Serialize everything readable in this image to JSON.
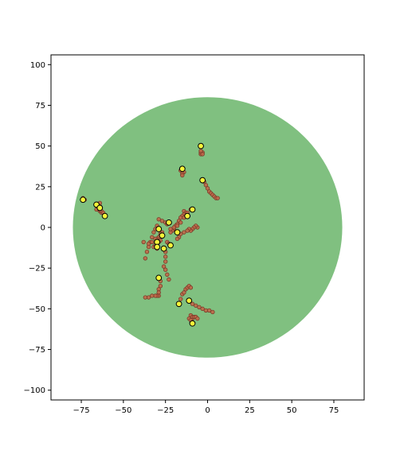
{
  "chart_data": {
    "type": "scatter",
    "title": "",
    "xlabel": "",
    "ylabel": "",
    "xlim": [
      -93,
      93
    ],
    "ylim": [
      -106,
      106
    ],
    "x_ticks": [
      -75,
      -50,
      -25,
      0,
      25,
      50,
      75
    ],
    "y_ticks": [
      100,
      75,
      50,
      25,
      0,
      -25,
      -50,
      -75,
      -100
    ],
    "x_tick_labels": [
      "−75",
      "−50",
      "−25",
      "0",
      "25",
      "50",
      "75"
    ],
    "y_tick_labels": [
      "100",
      "75",
      "50",
      "25",
      "0",
      "−25",
      "−50",
      "−75",
      "−100"
    ],
    "grid": false,
    "region": {
      "shape": "circle",
      "center": [
        0,
        0
      ],
      "radius": 80,
      "color": "#80c080"
    },
    "trail_style": {
      "fill": "#c06848",
      "stroke": "#7a3a2a"
    },
    "head_style": {
      "fill": "#f5f53a",
      "stroke": "#000000"
    },
    "series": [
      {
        "trail": [
          [
            -3,
            46
          ],
          [
            -4,
            45
          ],
          [
            -4,
            46
          ],
          [
            -3,
            45
          ],
          [
            -4,
            47
          ]
        ],
        "head": [
          -4,
          50
        ]
      },
      {
        "trail": [
          [
            -14,
            34
          ],
          [
            -15,
            33
          ],
          [
            -15,
            32
          ],
          [
            -16,
            35
          ]
        ],
        "head": [
          -15,
          36
        ]
      },
      {
        "trail": [
          [
            -2,
            28
          ],
          [
            -1,
            26
          ],
          [
            0,
            24
          ],
          [
            1,
            22
          ],
          [
            2,
            21
          ],
          [
            3,
            20
          ],
          [
            4,
            19
          ],
          [
            5,
            18
          ],
          [
            6,
            18
          ]
        ],
        "head": [
          -3,
          29
        ]
      },
      {
        "trail": [
          [
            -73,
            17
          ],
          [
            -74,
            18
          ]
        ],
        "head": [
          -74,
          17
        ]
      },
      {
        "trail": [
          [
            -64,
            15
          ],
          [
            -65,
            13
          ],
          [
            -65,
            12
          ],
          [
            -66,
            11
          ],
          [
            -64,
            10
          ],
          [
            -63,
            9
          ],
          [
            -64,
            11
          ]
        ],
        "head": [
          -66,
          14
        ]
      },
      {
        "trail": [
          [
            -63,
            10
          ],
          [
            -64,
            13
          ]
        ],
        "head": [
          -64,
          12
        ]
      },
      {
        "trail": [
          [
            -62,
            9
          ]
        ],
        "head": [
          -61,
          7
        ]
      },
      {
        "trail": [
          [
            -14,
            10
          ],
          [
            -13,
            9
          ],
          [
            -14,
            8
          ],
          [
            -15,
            7
          ],
          [
            -16,
            6
          ],
          [
            -17,
            4
          ],
          [
            -18,
            2
          ],
          [
            -19,
            1
          ],
          [
            -20,
            -1
          ],
          [
            -21,
            -2
          ],
          [
            -22,
            -3
          ]
        ],
        "head": [
          -12,
          7
        ]
      },
      {
        "trail": [
          [
            -10,
            11
          ],
          [
            -12,
            9
          ],
          [
            -14,
            6
          ],
          [
            -16,
            3
          ],
          [
            -18,
            1
          ],
          [
            -20,
            0
          ],
          [
            -22,
            -1
          ]
        ],
        "head": [
          -9,
          11
        ]
      },
      {
        "trail": [
          [
            -6,
            0
          ],
          [
            -7,
            1
          ],
          [
            -8,
            0
          ],
          [
            -9,
            -1
          ],
          [
            -10,
            -2
          ],
          [
            -11,
            -1
          ],
          [
            -12,
            -2
          ],
          [
            -14,
            -3
          ],
          [
            -16,
            -4
          ],
          [
            -17,
            -6
          ],
          [
            -18,
            -7
          ]
        ],
        "head": [
          -18,
          -3
        ]
      },
      {
        "trail": [
          [
            -29,
            5
          ],
          [
            -27,
            4
          ],
          [
            -25,
            3
          ],
          [
            -24,
            2
          ]
        ],
        "head": [
          -23,
          3
        ]
      },
      {
        "trail": [
          [
            -30,
            1
          ],
          [
            -31,
            -1
          ],
          [
            -32,
            -3
          ],
          [
            -33,
            -6
          ],
          [
            -34,
            -9
          ],
          [
            -35,
            -12
          ],
          [
            -36,
            -15
          ],
          [
            -37,
            -19
          ]
        ],
        "head": [
          -29,
          -1
        ]
      },
      {
        "trail": [
          [
            -28,
            -8
          ],
          [
            -29,
            -9
          ],
          [
            -30,
            -10
          ],
          [
            -31,
            -11
          ],
          [
            -33,
            -9
          ],
          [
            -35,
            -10
          ],
          [
            -38,
            -9
          ],
          [
            -32,
            -12
          ]
        ],
        "head": [
          -30,
          -9
        ]
      },
      {
        "trail": [
          [
            -27,
            -3
          ],
          [
            -28,
            -4
          ],
          [
            -29,
            -6
          ],
          [
            -30,
            -7
          ],
          [
            -31,
            -7
          ]
        ],
        "head": [
          -27,
          -5
        ]
      },
      {
        "trail": [
          [
            -25,
            -15
          ],
          [
            -25,
            -18
          ],
          [
            -25,
            -21
          ],
          [
            -26,
            -24
          ],
          [
            -25,
            -26
          ],
          [
            -24,
            -29
          ],
          [
            -23,
            -32
          ]
        ],
        "head": [
          -26,
          -13
        ]
      },
      {
        "trail": [
          [
            -24,
            -9
          ],
          [
            -23,
            -10
          ],
          [
            -22,
            -11
          ]
        ],
        "head": [
          -22,
          -11
        ]
      },
      {
        "trail": [
          [
            -30,
            -13
          ],
          [
            -31,
            -11
          ]
        ],
        "head": [
          -30,
          -12
        ]
      },
      {
        "trail": [
          [
            -28,
            -33
          ],
          [
            -28,
            -36
          ],
          [
            -29,
            -38
          ],
          [
            -29,
            -40
          ],
          [
            -29,
            -42
          ],
          [
            -30,
            -42
          ],
          [
            -31,
            -42
          ],
          [
            -33,
            -42
          ],
          [
            -35,
            -43
          ],
          [
            -37,
            -43
          ]
        ],
        "head": [
          -29,
          -31
        ]
      },
      {
        "trail": [
          [
            -16,
            -44
          ],
          [
            -15,
            -41
          ],
          [
            -14,
            -40
          ],
          [
            -13,
            -38
          ],
          [
            -12,
            -37
          ],
          [
            -11,
            -36
          ],
          [
            -10,
            -37
          ]
        ],
        "head": [
          -17,
          -47
        ]
      },
      {
        "trail": [
          [
            -9,
            -47
          ],
          [
            -7,
            -48
          ],
          [
            -5,
            -49
          ],
          [
            -3,
            -50
          ],
          [
            -1,
            -51
          ],
          [
            1,
            -51
          ],
          [
            3,
            -52
          ]
        ],
        "head": [
          -11,
          -45
        ]
      },
      {
        "trail": [
          [
            -11,
            -56
          ],
          [
            -10,
            -54
          ],
          [
            -9,
            -56
          ],
          [
            -10,
            -57
          ],
          [
            -9,
            -55
          ],
          [
            -8,
            -55
          ],
          [
            -7,
            -55
          ],
          [
            -6,
            -56
          ]
        ],
        "head": [
          -9,
          -59
        ]
      }
    ]
  }
}
